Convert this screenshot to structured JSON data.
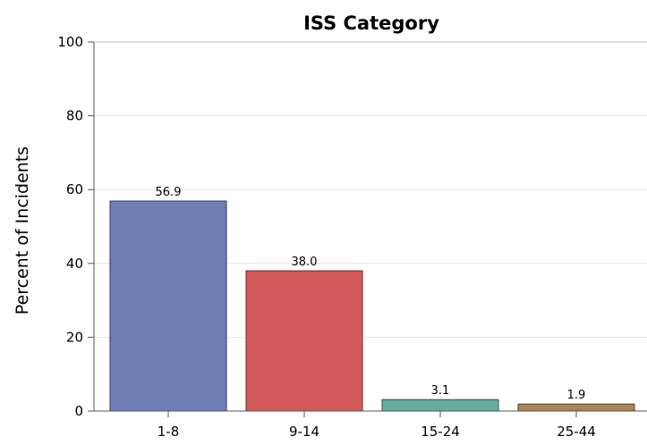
{
  "chart_data": {
    "type": "bar",
    "title": "ISS Category",
    "xlabel": "",
    "ylabel": "Percent of Incidents",
    "categories": [
      "1-8",
      "9-14",
      "15-24",
      "25-44"
    ],
    "values": [
      56.9,
      38.0,
      3.1,
      1.9
    ],
    "data_labels": [
      "56.9",
      "38.0",
      "3.1",
      "1.9"
    ],
    "ylim": [
      0,
      100
    ],
    "yticks": [
      0,
      20,
      40,
      60,
      80,
      100
    ],
    "grid": true,
    "colors": [
      "#6f7fb5",
      "#d35a5a",
      "#6aaba0",
      "#a88456"
    ],
    "edge_colors": [
      "#2a3566",
      "#6e2424",
      "#235750",
      "#5a4220"
    ]
  }
}
